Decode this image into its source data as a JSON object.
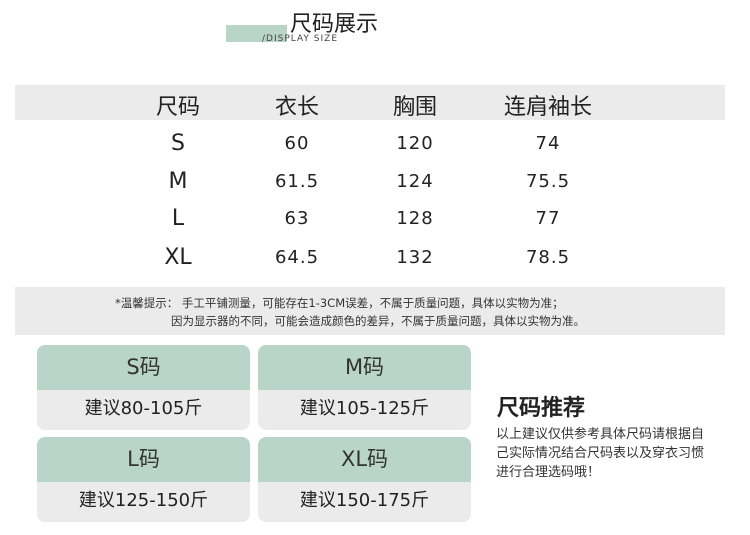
{
  "header": {
    "title": "尺码展示",
    "subtitle": "/DISPLAY SIZE",
    "accent": "#b9d5c9"
  },
  "table": {
    "columns": [
      "尺码",
      "衣长",
      "胸围",
      "连肩袖长"
    ],
    "rows": [
      [
        "S",
        "60",
        "120",
        "74"
      ],
      [
        "M",
        "61.5",
        "124",
        "75.5"
      ],
      [
        "L",
        "63",
        "128",
        "77"
      ],
      [
        "XL",
        "64.5",
        "132",
        "78.5"
      ]
    ]
  },
  "note": {
    "line1": "*温馨提示：  手工平铺测量，可能存在1-3CM误差，不属于质量问题，具体以实物为准；",
    "line2": "因为显示器的不同，可能会造成颜色的差异，不属于质量问题，具体以实物为准。"
  },
  "cards": [
    {
      "size": "S码",
      "advice": "建议80-105斤"
    },
    {
      "size": "M码",
      "advice": "建议105-125斤"
    },
    {
      "size": "L码",
      "advice": "建议125-150斤"
    },
    {
      "size": "XL码",
      "advice": "建议150-175斤"
    }
  ],
  "recommend": {
    "title": "尺码推荐",
    "text": "以上建议仅供参考具体尺码请根据自己实际情况结合尺码表以及穿衣习惯进行合理选码哦！"
  }
}
